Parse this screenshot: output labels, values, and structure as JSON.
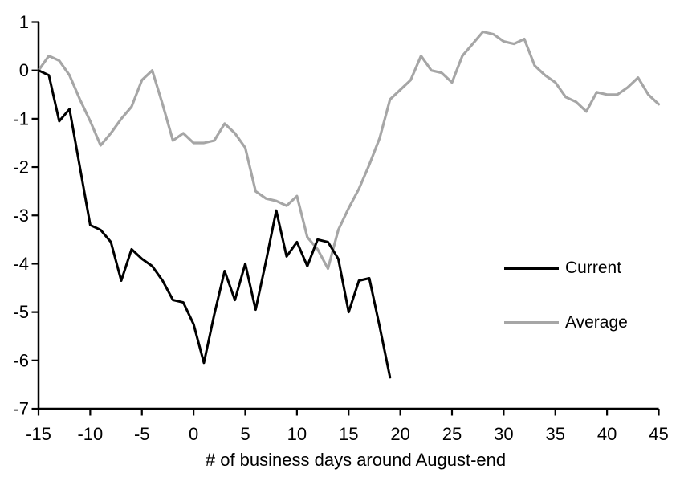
{
  "chart_data": {
    "type": "line",
    "title": "",
    "xlabel": "# of business days around August-end",
    "ylabel": "",
    "xlim": [
      -15,
      45
    ],
    "ylim": [
      -7,
      1
    ],
    "x_ticks": [
      -15,
      -10,
      -5,
      0,
      5,
      10,
      15,
      20,
      25,
      30,
      35,
      40,
      45
    ],
    "y_ticks": [
      1,
      0,
      -1,
      -2,
      -3,
      -4,
      -5,
      -6,
      -7
    ],
    "grid": false,
    "legend_position": "right-middle",
    "series": [
      {
        "name": "Current",
        "color": "#000000",
        "x": [
          -15,
          -14,
          -13,
          -12,
          -11,
          -10,
          -9,
          -8,
          -7,
          -6,
          -5,
          -4,
          -3,
          -2,
          -1,
          0,
          1,
          2,
          3,
          4,
          5,
          6,
          7,
          8,
          9,
          10,
          11,
          12,
          13,
          14,
          15,
          16,
          17,
          18,
          19
        ],
        "values": [
          0,
          -0.1,
          -1.05,
          -0.8,
          -2.0,
          -3.2,
          -3.3,
          -3.55,
          -4.35,
          -3.7,
          -3.9,
          -4.05,
          -4.35,
          -4.75,
          -4.8,
          -5.25,
          -6.05,
          -5.05,
          -4.15,
          -4.75,
          -4.0,
          -4.95,
          -3.95,
          -2.9,
          -3.85,
          -3.55,
          -4.05,
          -3.5,
          -3.55,
          -3.9,
          -5.0,
          -4.35,
          -4.3,
          -5.3,
          -6.35
        ]
      },
      {
        "name": "Average",
        "color": "#a6a6a6",
        "x": [
          -15,
          -14,
          -13,
          -12,
          -11,
          -10,
          -9,
          -8,
          -7,
          -6,
          -5,
          -4,
          -3,
          -2,
          -1,
          0,
          1,
          2,
          3,
          4,
          5,
          6,
          7,
          8,
          9,
          10,
          11,
          12,
          13,
          14,
          15,
          16,
          17,
          18,
          19,
          20,
          21,
          22,
          23,
          24,
          25,
          26,
          27,
          28,
          29,
          30,
          31,
          32,
          33,
          34,
          35,
          36,
          37,
          38,
          39,
          40,
          41,
          42,
          43,
          44,
          45
        ],
        "values": [
          0,
          0.3,
          0.2,
          -0.1,
          -0.6,
          -1.05,
          -1.55,
          -1.3,
          -1.0,
          -0.75,
          -0.2,
          0.0,
          -0.7,
          -1.45,
          -1.3,
          -1.5,
          -1.5,
          -1.45,
          -1.1,
          -1.3,
          -1.6,
          -2.5,
          -2.65,
          -2.7,
          -2.8,
          -2.6,
          -3.45,
          -3.7,
          -4.1,
          -3.3,
          -2.85,
          -2.45,
          -1.95,
          -1.4,
          -0.6,
          -0.4,
          -0.2,
          0.3,
          0.0,
          -0.05,
          -0.25,
          0.3,
          0.55,
          0.8,
          0.75,
          0.6,
          0.55,
          0.65,
          0.1,
          -0.1,
          -0.25,
          -0.55,
          -0.65,
          -0.85,
          -0.45,
          -0.5,
          -0.5,
          -0.35,
          -0.15,
          -0.5,
          -0.7
        ]
      }
    ]
  },
  "colors": {
    "background": "#ffffff",
    "axis": "#000000",
    "text": "#000000",
    "series_current": "#000000",
    "series_average": "#a6a6a6"
  },
  "legend": {
    "items": [
      {
        "label": "Current"
      },
      {
        "label": "Average"
      }
    ]
  }
}
